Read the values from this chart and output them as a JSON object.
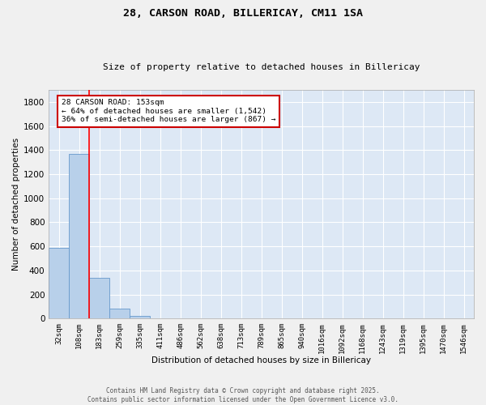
{
  "title": "28, CARSON ROAD, BILLERICAY, CM11 1SA",
  "subtitle": "Size of property relative to detached houses in Billericay",
  "xlabel": "Distribution of detached houses by size in Billericay",
  "ylabel": "Number of detached properties",
  "footer_line1": "Contains HM Land Registry data © Crown copyright and database right 2025.",
  "footer_line2": "Contains public sector information licensed under the Open Government Licence v3.0.",
  "bar_labels": [
    "32sqm",
    "108sqm",
    "183sqm",
    "259sqm",
    "335sqm",
    "411sqm",
    "486sqm",
    "562sqm",
    "638sqm",
    "713sqm",
    "789sqm",
    "865sqm",
    "940sqm",
    "1016sqm",
    "1092sqm",
    "1168sqm",
    "1243sqm",
    "1319sqm",
    "1395sqm",
    "1470sqm",
    "1546sqm"
  ],
  "bar_values": [
    590,
    1370,
    340,
    85,
    25,
    5,
    2,
    1,
    1,
    0,
    0,
    0,
    0,
    0,
    0,
    0,
    0,
    0,
    0,
    0,
    0
  ],
  "bar_color": "#b8d0ea",
  "bar_edge_color": "#6699cc",
  "background_color": "#dde8f5",
  "grid_color": "#ffffff",
  "red_line_x": 1.5,
  "annotation_title": "28 CARSON ROAD: 153sqm",
  "annotation_line1": "← 64% of detached houses are smaller (1,542)",
  "annotation_line2": "36% of semi-detached houses are larger (867) →",
  "annotation_box_facecolor": "#ffffff",
  "annotation_box_edgecolor": "#cc0000",
  "ylim": [
    0,
    1900
  ],
  "yticks": [
    0,
    200,
    400,
    600,
    800,
    1000,
    1200,
    1400,
    1600,
    1800
  ],
  "fig_bg": "#f0f0f0"
}
